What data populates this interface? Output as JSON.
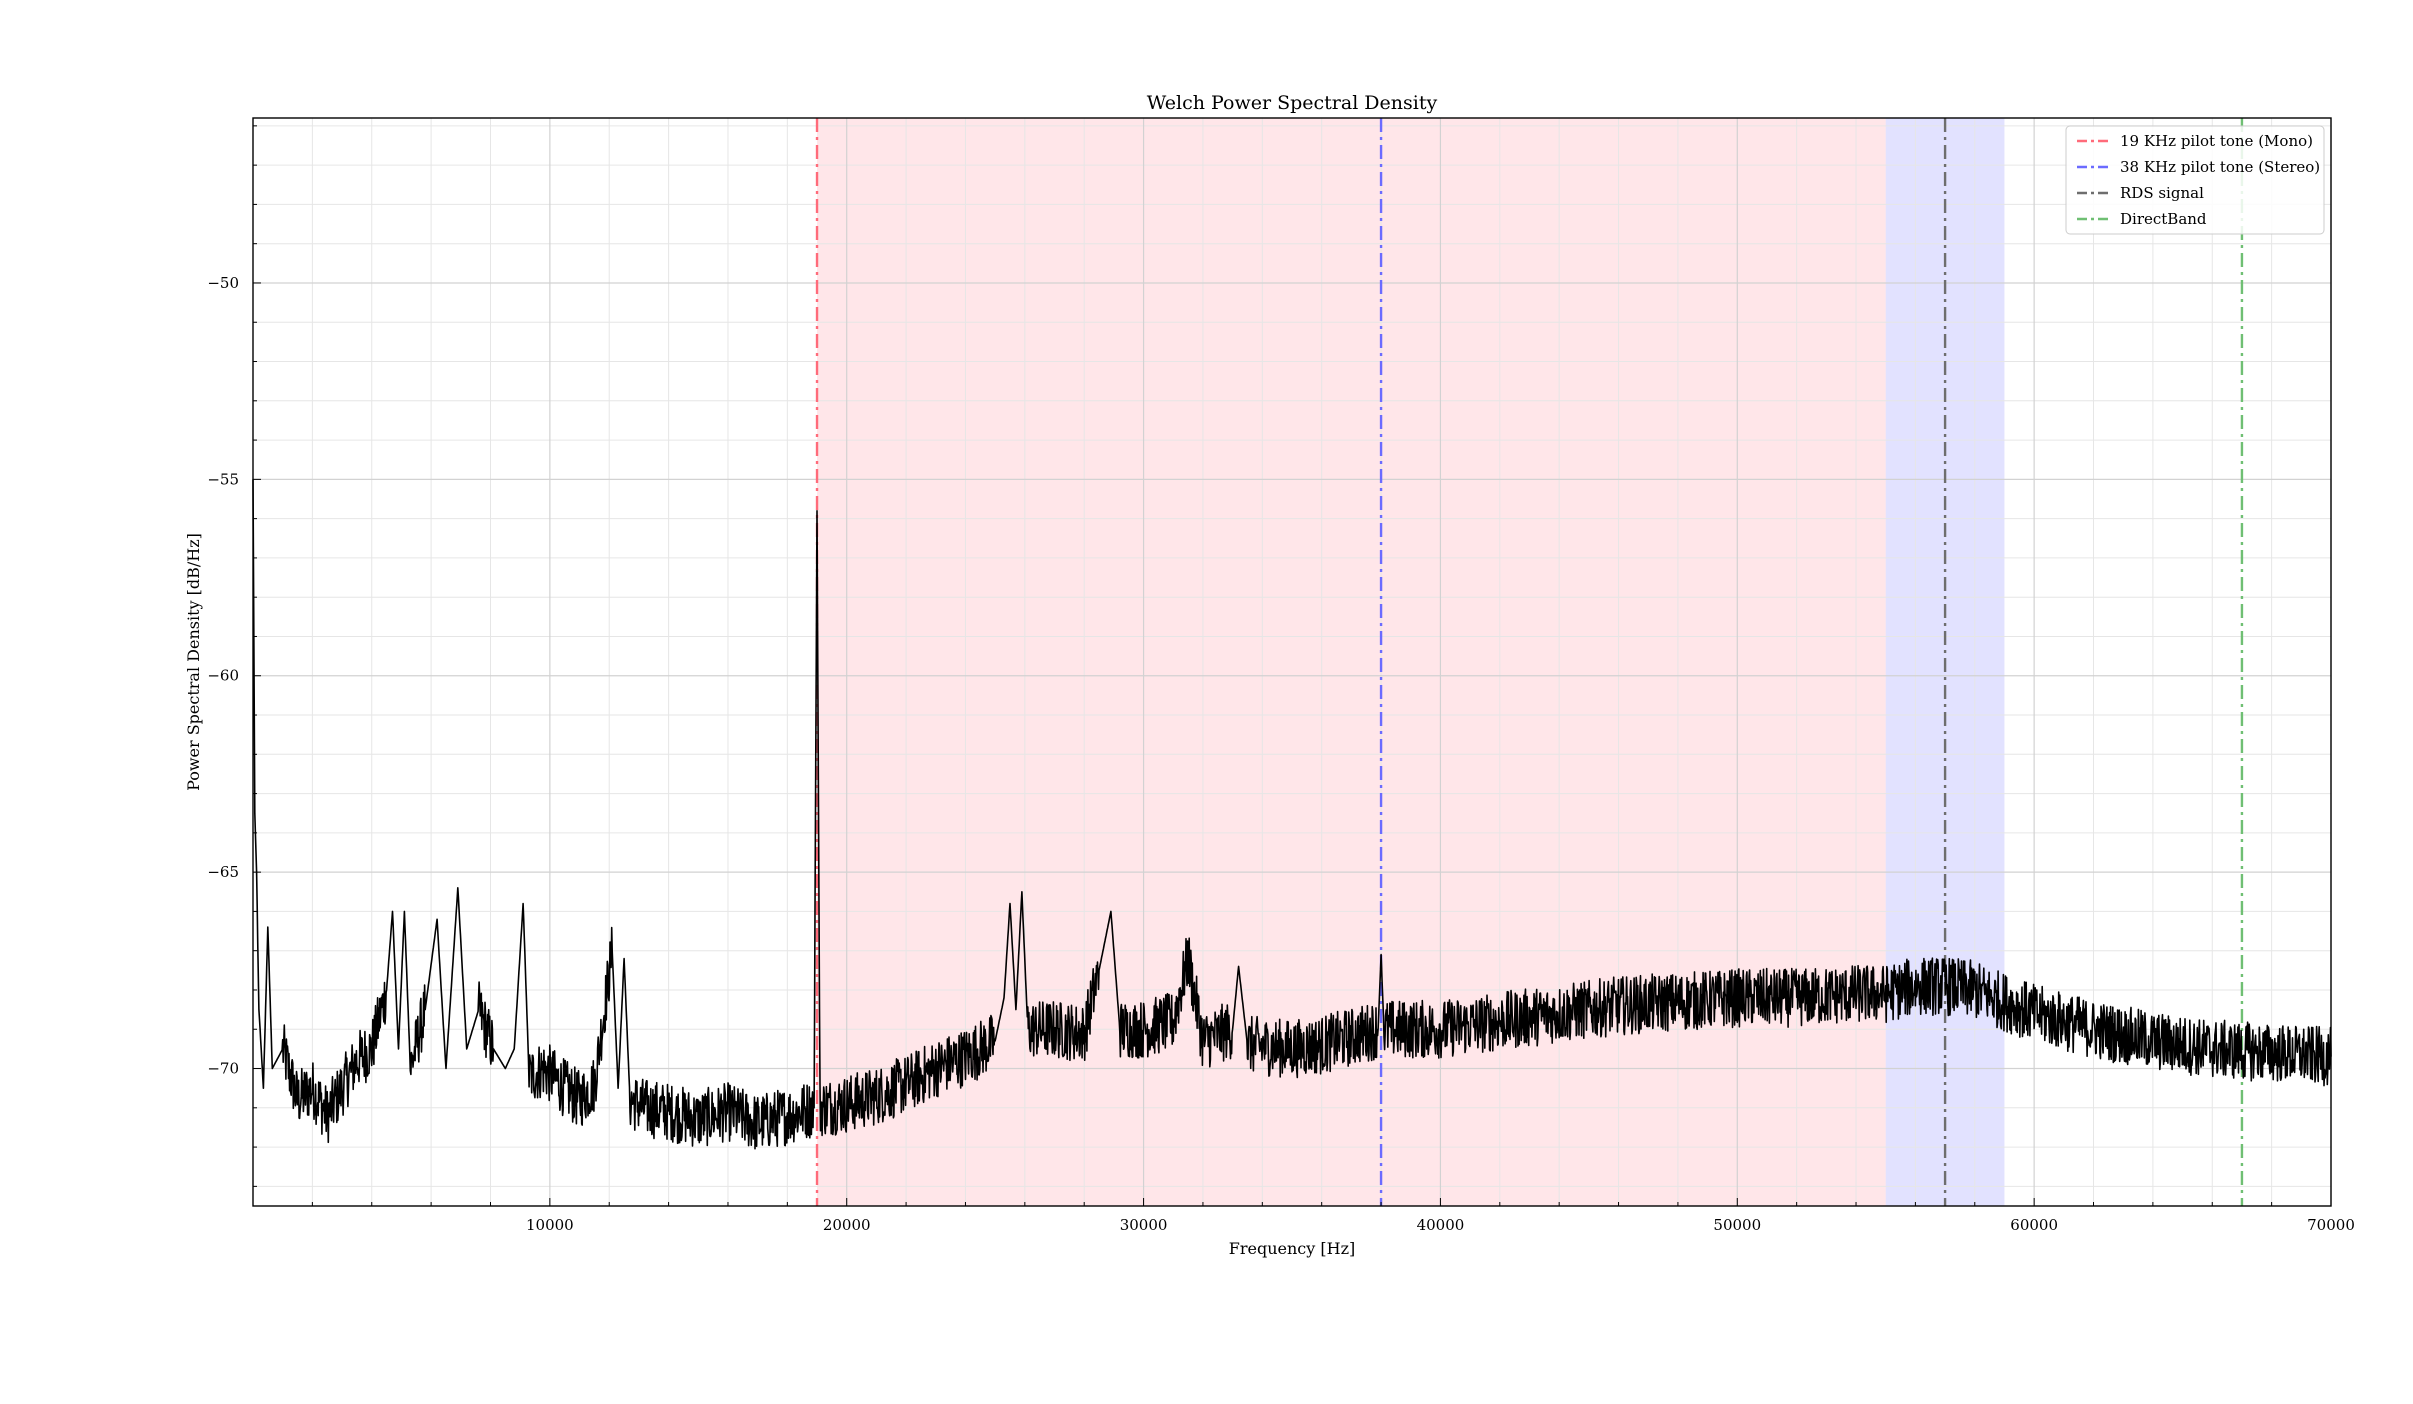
{
  "chart_data": {
    "type": "line",
    "title": "Welch Power Spectral Density",
    "xlabel": "Frequency [Hz]",
    "ylabel": "Power Spectral Density [dB/Hz]",
    "xlim": [
      0,
      70000
    ],
    "ylim": [
      -73.5,
      -45.8
    ],
    "x_ticks": [
      10000,
      20000,
      30000,
      40000,
      50000,
      60000,
      70000
    ],
    "y_ticks": [
      -70,
      -65,
      -60,
      -55,
      -50
    ],
    "grid": true,
    "legend_position": "top-right",
    "shaded_bands": [
      {
        "x_start": 19000,
        "x_end": 55000,
        "color": "#ff9aa6",
        "opacity": 0.25
      },
      {
        "x_start": 55000,
        "x_end": 59000,
        "color": "#8a8aff",
        "opacity": 0.25
      }
    ],
    "vlines": [
      {
        "name": "19 KHz pilot tone (Mono)",
        "x": 19000,
        "color": "#ff6b7a"
      },
      {
        "name": "38 KHz pilot tone (Stereo)",
        "x": 38000,
        "color": "#6b6bff"
      },
      {
        "name": "RDS signal",
        "x": 57000,
        "color": "#6e6e6e"
      },
      {
        "name": "DirectBand",
        "x": 67000,
        "color": "#6fbf73"
      }
    ],
    "series": [
      {
        "color": "#000000",
        "points": [
          [
            0,
            -55.0
          ],
          [
            60,
            -63.5
          ],
          [
            120,
            -65.0
          ],
          [
            200,
            -68.5
          ],
          [
            350,
            -70.5
          ],
          [
            500,
            -66.4
          ],
          [
            650,
            -70.0
          ],
          [
            1000,
            -69.5
          ],
          [
            1500,
            -70.8
          ],
          [
            2000,
            -70.5
          ],
          [
            2500,
            -71.2
          ],
          [
            3000,
            -70.5
          ],
          [
            3500,
            -69.8
          ],
          [
            4000,
            -69.5
          ],
          [
            4500,
            -68.0
          ],
          [
            4700,
            -66.0
          ],
          [
            4900,
            -69.5
          ],
          [
            5100,
            -66.0
          ],
          [
            5300,
            -70.0
          ],
          [
            5800,
            -68.5
          ],
          [
            6200,
            -66.2
          ],
          [
            6500,
            -70.0
          ],
          [
            6900,
            -65.4
          ],
          [
            7200,
            -69.5
          ],
          [
            7600,
            -68.5
          ],
          [
            8100,
            -69.5
          ],
          [
            8500,
            -70.0
          ],
          [
            8800,
            -69.5
          ],
          [
            9100,
            -65.8
          ],
          [
            9300,
            -70.2
          ],
          [
            9800,
            -70.0
          ],
          [
            10500,
            -70.5
          ],
          [
            11000,
            -70.8
          ],
          [
            11500,
            -70.4
          ],
          [
            12100,
            -67.0
          ],
          [
            12300,
            -70.5
          ],
          [
            12500,
            -67.2
          ],
          [
            12700,
            -70.8
          ],
          [
            13200,
            -71.0
          ],
          [
            14000,
            -71.1
          ],
          [
            15000,
            -71.3
          ],
          [
            16000,
            -71.1
          ],
          [
            17000,
            -71.4
          ],
          [
            18000,
            -71.2
          ],
          [
            18900,
            -71.0
          ],
          [
            19000,
            -55.8
          ],
          [
            19100,
            -71.0
          ],
          [
            20000,
            -70.9
          ],
          [
            21000,
            -70.7
          ],
          [
            22000,
            -70.4
          ],
          [
            23000,
            -70.0
          ],
          [
            24000,
            -69.7
          ],
          [
            25000,
            -69.3
          ],
          [
            25300,
            -68.2
          ],
          [
            25500,
            -65.8
          ],
          [
            25700,
            -68.5
          ],
          [
            25900,
            -65.5
          ],
          [
            26100,
            -69.0
          ],
          [
            27000,
            -69.0
          ],
          [
            28000,
            -69.1
          ],
          [
            28500,
            -67.5
          ],
          [
            28900,
            -66.0
          ],
          [
            29200,
            -69.0
          ],
          [
            30000,
            -69.0
          ],
          [
            31000,
            -68.8
          ],
          [
            31500,
            -67.2
          ],
          [
            32000,
            -69.3
          ],
          [
            33000,
            -69.0
          ],
          [
            33200,
            -67.4
          ],
          [
            33500,
            -69.4
          ],
          [
            35000,
            -69.5
          ],
          [
            36000,
            -69.4
          ],
          [
            37000,
            -69.2
          ],
          [
            37900,
            -69.0
          ],
          [
            38000,
            -67.1
          ],
          [
            38100,
            -69.0
          ],
          [
            40000,
            -69.0
          ],
          [
            42000,
            -68.8
          ],
          [
            44000,
            -68.6
          ],
          [
            46000,
            -68.4
          ],
          [
            48000,
            -68.3
          ],
          [
            50000,
            -68.2
          ],
          [
            52000,
            -68.2
          ],
          [
            54000,
            -68.1
          ],
          [
            55000,
            -68.1
          ],
          [
            56000,
            -67.9
          ],
          [
            57000,
            -67.9
          ],
          [
            58000,
            -68.0
          ],
          [
            59000,
            -68.3
          ],
          [
            60000,
            -68.6
          ],
          [
            62000,
            -69.0
          ],
          [
            64000,
            -69.3
          ],
          [
            66000,
            -69.5
          ],
          [
            68000,
            -69.6
          ],
          [
            70000,
            -69.7
          ]
        ]
      }
    ]
  }
}
